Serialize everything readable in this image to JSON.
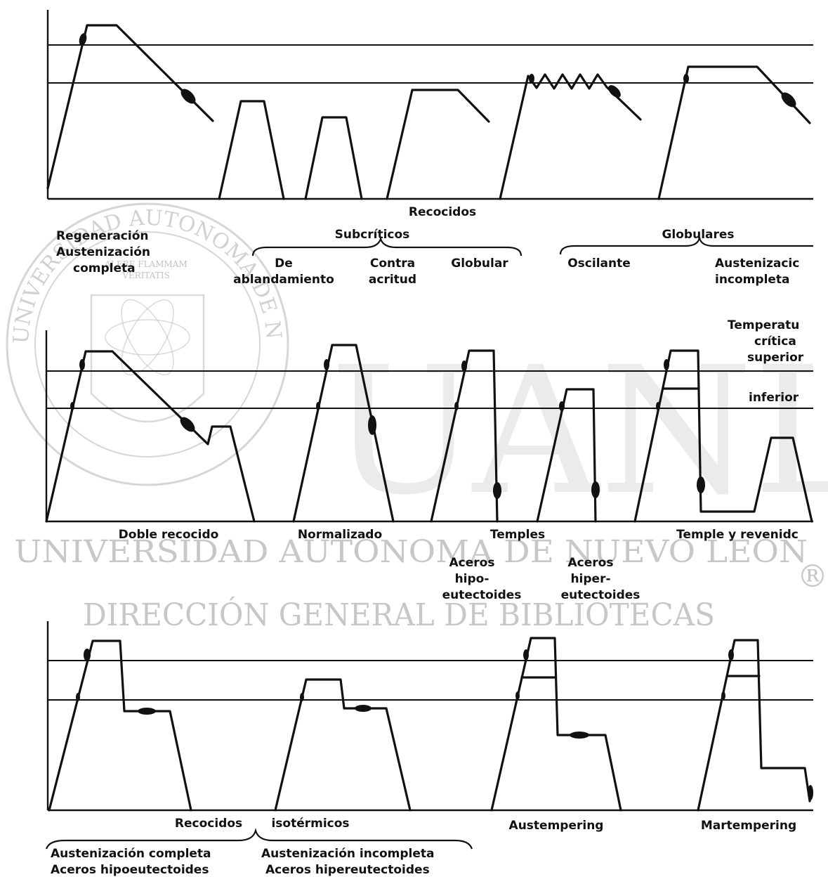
{
  "watermark": {
    "big_text": "UANL",
    "line1": "UNIVERSIDAD AUTÓNOMA DE NUEVO LEÓN",
    "line2": "DIRECCIÓN GENERAL DE BIBLIOTECAS",
    "registered": "®",
    "seal_ring": "UNIVERSIDAD AUTONOMA DE NUEVO LEON",
    "seal_motto1": "ALERE FLAMMAM",
    "seal_motto2": "VERITATIS"
  },
  "row1": {
    "group_title": "Recocidos",
    "subcriticos": "Subcríticos",
    "globulares": "Globulares",
    "regeneracion": [
      "Regeneración",
      "Austenización",
      "completa"
    ],
    "de_ablandamiento": [
      "De",
      "ablandamiento"
    ],
    "contra_acritud": [
      "Contra",
      "acritud"
    ],
    "globular": "Globular",
    "oscilante": "Oscilante",
    "austenizacion_incompleta": [
      "Austenizacic",
      "incompleta"
    ]
  },
  "row2": {
    "temperatura_critica": [
      "Temperatu",
      "crítica",
      "superior"
    ],
    "inferior": "inferior",
    "doble_recocido": "Doble recocido",
    "normalizado": "Normalizado",
    "temples": "Temples",
    "aceros_hipo": [
      "Aceros",
      "hipo-",
      "eutectoides"
    ],
    "aceros_hiper": [
      "Aceros",
      "hiper-",
      "eutectoides"
    ],
    "temple_revenido": "Temple y revenidc"
  },
  "row3": {
    "recocidos": "Recocidos",
    "isotermicos": "isotérmicos",
    "austempering": "Austempering",
    "martempering": "Martempering",
    "austenizacion_completa": "Austenización completa",
    "aceros_hipoeutectoides": "Aceros hipoeutectoides",
    "austenizacion_incompleta": "Austenización incompleta",
    "aceros_hipereutectoides": "Aceros hipereutectoides"
  }
}
